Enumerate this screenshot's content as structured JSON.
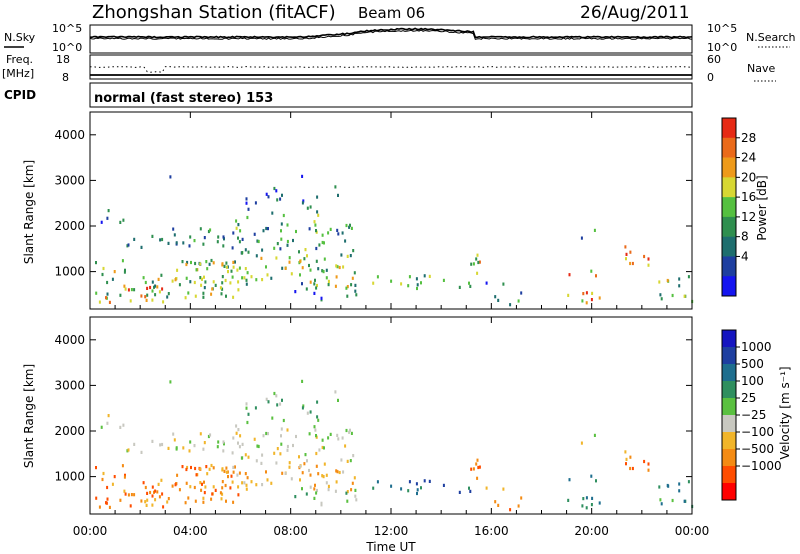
{
  "header": {
    "station": "Zhongshan Station (fitACF)",
    "beam": "Beam 06",
    "date": "26/Aug/2011"
  },
  "strip_nsky": {
    "left_label": "N.Sky",
    "right_label": "N.Search",
    "left_ticks": [
      "10^5",
      "10^0"
    ],
    "right_ticks": [
      "10^5",
      "10^0"
    ]
  },
  "strip_freq": {
    "left_label_1": "Freq.",
    "left_label_2": "[MHz]",
    "right_label": "Nave",
    "left_ticks": [
      "18",
      "8"
    ],
    "right_ticks": [
      "60",
      "0"
    ]
  },
  "cpid": {
    "label": "CPID",
    "value": "normal (fast stereo) 153"
  },
  "colors": {
    "power": [
      "#1515f0",
      "#1e3fa0",
      "#1e6e6e",
      "#2f8f4f",
      "#55c040",
      "#d7d733",
      "#ee9a1a",
      "#ea6a1a",
      "#e62a15"
    ],
    "velocity": [
      "#ff0000",
      "#ff4d00",
      "#f48b13",
      "#f1b52a",
      "#c8c8c0",
      "#5ac040",
      "#2f8f5f",
      "#1e6e8e",
      "#1e3fa0",
      "#1515c0"
    ]
  },
  "chart_data": [
    {
      "type": "heatmap",
      "name": "power",
      "ylabel": "Slant Range [km]",
      "xlabel": "",
      "x_ticks": [
        "00:00",
        "04:00",
        "08:00",
        "12:00",
        "16:00",
        "20:00",
        "00:00"
      ],
      "xlim_hours": [
        0,
        24
      ],
      "ylim_km": [
        180,
        4500
      ],
      "y_ticks": [
        1000,
        2000,
        3000,
        4000
      ],
      "colorbar_label": "Power [dB]",
      "colorbar_ticks": [
        "28",
        "24",
        "20",
        "16",
        "12",
        "8",
        "4"
      ],
      "colorbar_range": [
        0,
        30
      ]
    },
    {
      "type": "heatmap",
      "name": "velocity",
      "ylabel": "Slant Range [km]",
      "xlabel": "Time UT",
      "x_ticks": [
        "00:00",
        "04:00",
        "08:00",
        "12:00",
        "16:00",
        "20:00",
        "00:00"
      ],
      "xlim_hours": [
        0,
        24
      ],
      "ylim_km": [
        180,
        4500
      ],
      "y_ticks": [
        1000,
        2000,
        3000,
        4000
      ],
      "colorbar_label": "Velocity [m s⁻¹]",
      "colorbar_ticks": [
        "1000",
        "500",
        "100",
        "25",
        "−25",
        "−100",
        "−500",
        "−1000"
      ]
    }
  ]
}
